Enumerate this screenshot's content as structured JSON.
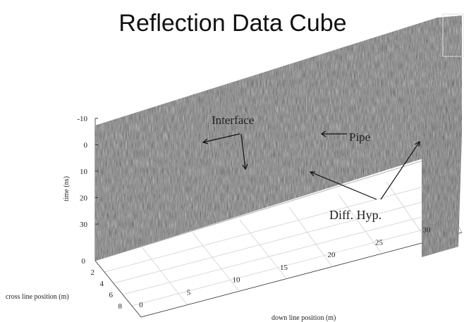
{
  "title": "Reflection Data Cube",
  "axes": {
    "time": {
      "label": "time (ns)",
      "ticks": [
        -10,
        0,
        10,
        20,
        30
      ]
    },
    "cross_line": {
      "label": "cross line position (m)",
      "ticks": [
        0,
        2,
        4,
        6,
        8
      ]
    },
    "down_line": {
      "label": "down line position (m)",
      "ticks": [
        0,
        5,
        10,
        15,
        20,
        25,
        30
      ]
    }
  },
  "annotations": [
    "Interface",
    "Pipe",
    "Diff. Hyp."
  ]
}
